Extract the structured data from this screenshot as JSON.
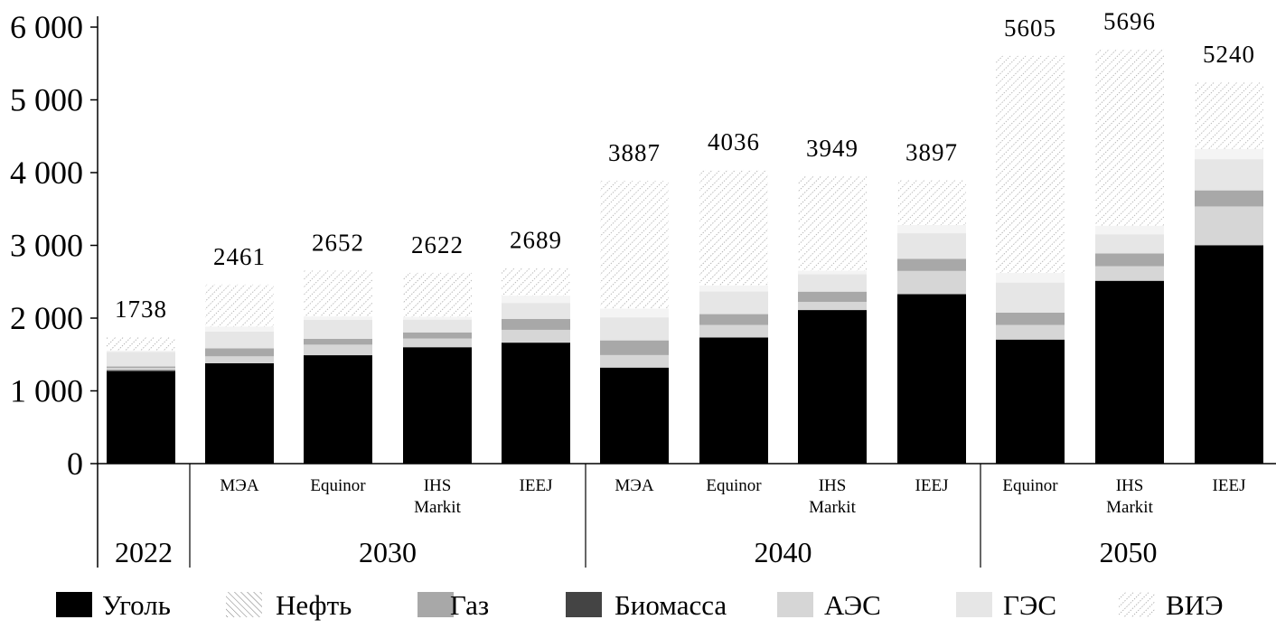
{
  "chart_data": {
    "type": "bar",
    "stacked": true,
    "ylim": [
      0,
      6000
    ],
    "yticks": [
      0,
      1000,
      2000,
      3000,
      4000,
      5000,
      6000
    ],
    "ytick_labels": [
      "0",
      "1 000",
      "2 000",
      "3 000",
      "4 000",
      "5 000",
      "6 000"
    ],
    "grid": false,
    "legend_position": "bottom",
    "groups": [
      {
        "label": "2022",
        "bars": [
          ""
        ]
      },
      {
        "label": "2030",
        "bars": [
          "МЭА",
          "Equinor",
          "IHS Markit",
          "IEEJ"
        ]
      },
      {
        "label": "2040",
        "bars": [
          "МЭА",
          "Equinor",
          "IHS Markit",
          "IEEJ"
        ]
      },
      {
        "label": "2050",
        "bars": [
          "Equinor",
          "IHS Markit",
          "IEEJ"
        ]
      }
    ],
    "totals": [
      1738,
      2461,
      2652,
      2622,
      2689,
      3887,
      4036,
      3949,
      3897,
      5605,
      5696,
      5240
    ],
    "total_labels": [
      "1738",
      "2461",
      "2652",
      "2622",
      "2689",
      "3887",
      "4036",
      "3949",
      "3897",
      "5605",
      "5696",
      "5240"
    ],
    "series": [
      {
        "name": "Уголь",
        "color": "#000000",
        "values": [
          1270,
          1380,
          1490,
          1600,
          1663,
          1320,
          1733,
          2111,
          2329,
          1705,
          2513,
          3002
        ]
      },
      {
        "name": "Биомасса",
        "color": "#444444",
        "values": [
          15,
          0,
          0,
          0,
          0,
          0,
          0,
          0,
          0,
          0,
          0,
          0
        ]
      },
      {
        "name": "АЭС",
        "color": "#d6d6d6",
        "values": [
          30,
          95,
          145,
          120,
          176,
          172,
          173,
          112,
          319,
          201,
          200,
          533
        ]
      },
      {
        "name": "Газ",
        "color": "#a8a8a8",
        "values": [
          20,
          110,
          80,
          84,
          149,
          202,
          149,
          141,
          168,
          169,
          176,
          221
        ]
      },
      {
        "name": "ГЭС",
        "color": "#e6e6e6",
        "values": [
          200,
          230,
          260,
          175,
          221,
          317,
          313,
          240,
          351,
          414,
          264,
          429
        ]
      },
      {
        "name": "Нефть",
        "color": "#f4f4f4",
        "values": [
          20,
          70,
          48,
          40,
          100,
          120,
          81,
          48,
          112,
          132,
          117,
          140
        ]
      },
      {
        "name": "ВИЭ",
        "color": "#bbbbbb",
        "values": [
          183,
          576,
          629,
          603,
          380,
          1756,
          1587,
          1297,
          618,
          2984,
          2426,
          915
        ]
      }
    ],
    "legend": [
      "Уголь",
      "Нефть",
      "Газ",
      "Биомасса",
      "АЭС",
      "ГЭС",
      "ВИЭ"
    ]
  }
}
